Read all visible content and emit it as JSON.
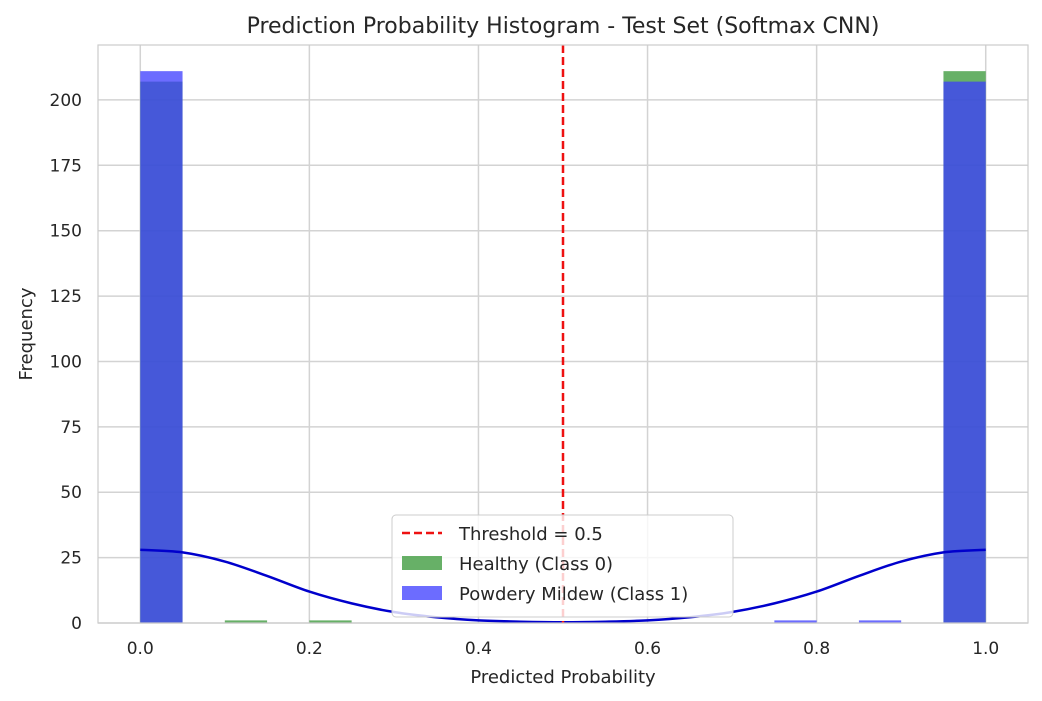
{
  "chart_data": {
    "type": "bar",
    "title": "Prediction Probability Histogram - Test Set (Softmax CNN)",
    "xlabel": "Predicted Probability",
    "ylabel": "Frequency",
    "xlim": [
      -0.05,
      1.05
    ],
    "ylim": [
      0,
      221
    ],
    "xticks": [
      0.0,
      0.2,
      0.4,
      0.6,
      0.8,
      1.0
    ],
    "xtick_labels": [
      "0.0",
      "0.2",
      "0.4",
      "0.6",
      "0.8",
      "1.0"
    ],
    "yticks": [
      0,
      25,
      50,
      75,
      100,
      125,
      150,
      175,
      200
    ],
    "ytick_labels": [
      "0",
      "25",
      "50",
      "75",
      "100",
      "125",
      "150",
      "175",
      "200"
    ],
    "grid": true,
    "legend_position": "bottom-center",
    "bin_edges": [
      0.0,
      0.05,
      0.1,
      0.15,
      0.2,
      0.25,
      0.3,
      0.35,
      0.4,
      0.45,
      0.5,
      0.55,
      0.6,
      0.65,
      0.7,
      0.75,
      0.8,
      0.85,
      0.9,
      0.95,
      1.0
    ],
    "series": [
      {
        "name": "Healthy (Class 0)",
        "color": "#3c9a3c",
        "counts": [
          207,
          0,
          1,
          0,
          1,
          0,
          0,
          0,
          0,
          0,
          0,
          0,
          0,
          0,
          0,
          0,
          0,
          0,
          0,
          211
        ]
      },
      {
        "name": "Powdery Mildew (Class 1)",
        "color": "#3b3bff",
        "counts": [
          211,
          0,
          0,
          0,
          0,
          0,
          0,
          0,
          0,
          0,
          0,
          0,
          0,
          0,
          0,
          1,
          0,
          1,
          0,
          207
        ]
      }
    ],
    "kde": {
      "color": "#0000cc",
      "x": [
        0.0,
        0.05,
        0.1,
        0.15,
        0.2,
        0.25,
        0.3,
        0.35,
        0.4,
        0.45,
        0.5,
        0.55,
        0.6,
        0.65,
        0.7,
        0.75,
        0.8,
        0.85,
        0.9,
        0.95,
        1.0
      ],
      "y": [
        28,
        27,
        23.5,
        18,
        12,
        7.5,
        4.2,
        2.2,
        1.0,
        0.5,
        0.3,
        0.5,
        1.0,
        2.2,
        4.2,
        7.5,
        12,
        18,
        23.5,
        27,
        28
      ]
    },
    "threshold": {
      "label": "Threshold = 0.5",
      "value": 0.5,
      "color": "#ee1111"
    }
  }
}
